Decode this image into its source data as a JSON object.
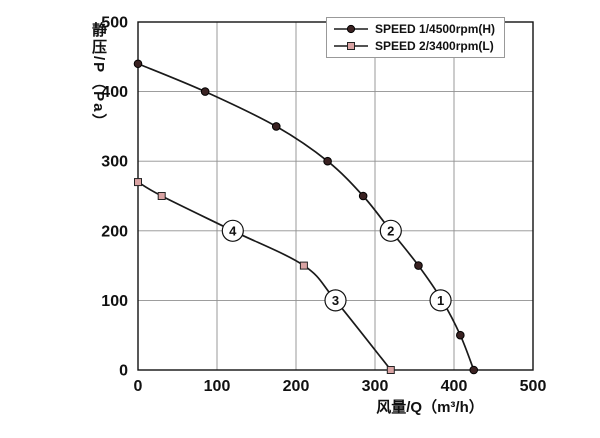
{
  "chart_data": {
    "type": "line",
    "title": "",
    "xlabel": "风量/Q（m³/h）",
    "ylabel": "静压/P（Pa）",
    "xlim": [
      0,
      500
    ],
    "ylim": [
      0,
      500
    ],
    "xticks": [
      0,
      100,
      200,
      300,
      400,
      500
    ],
    "yticks": [
      0,
      100,
      200,
      300,
      400,
      500
    ],
    "grid": true,
    "grid_color": "#8f8f8f",
    "axis_color": "#111111",
    "legend_position": "top-right-inside",
    "series": [
      {
        "name": "SPEED 1/4500rpm(H)",
        "marker": "circle",
        "line_color": "#1a1a1a",
        "marker_fill": "#3a2222",
        "marker_stroke": "#000000",
        "points": [
          [
            0,
            440
          ],
          [
            85,
            400
          ],
          [
            175,
            350
          ],
          [
            240,
            300
          ],
          [
            285,
            250
          ],
          [
            320,
            200
          ],
          [
            355,
            150
          ],
          [
            385,
            100
          ],
          [
            408,
            50
          ],
          [
            425,
            0
          ]
        ]
      },
      {
        "name": "SPEED 2/3400rpm(L)",
        "marker": "square",
        "line_color": "#1a1a1a",
        "marker_fill": "#d9a3a3",
        "marker_stroke": "#222222",
        "points": [
          [
            0,
            270
          ],
          [
            30,
            250
          ],
          [
            120,
            200
          ],
          [
            210,
            150
          ],
          [
            250,
            100
          ],
          [
            320,
            0
          ]
        ]
      }
    ],
    "annotations": [
      {
        "label": "①",
        "x": 383,
        "y": 100
      },
      {
        "label": "②",
        "x": 320,
        "y": 200
      },
      {
        "label": "③",
        "x": 250,
        "y": 100
      },
      {
        "label": "④",
        "x": 120,
        "y": 200
      }
    ]
  }
}
